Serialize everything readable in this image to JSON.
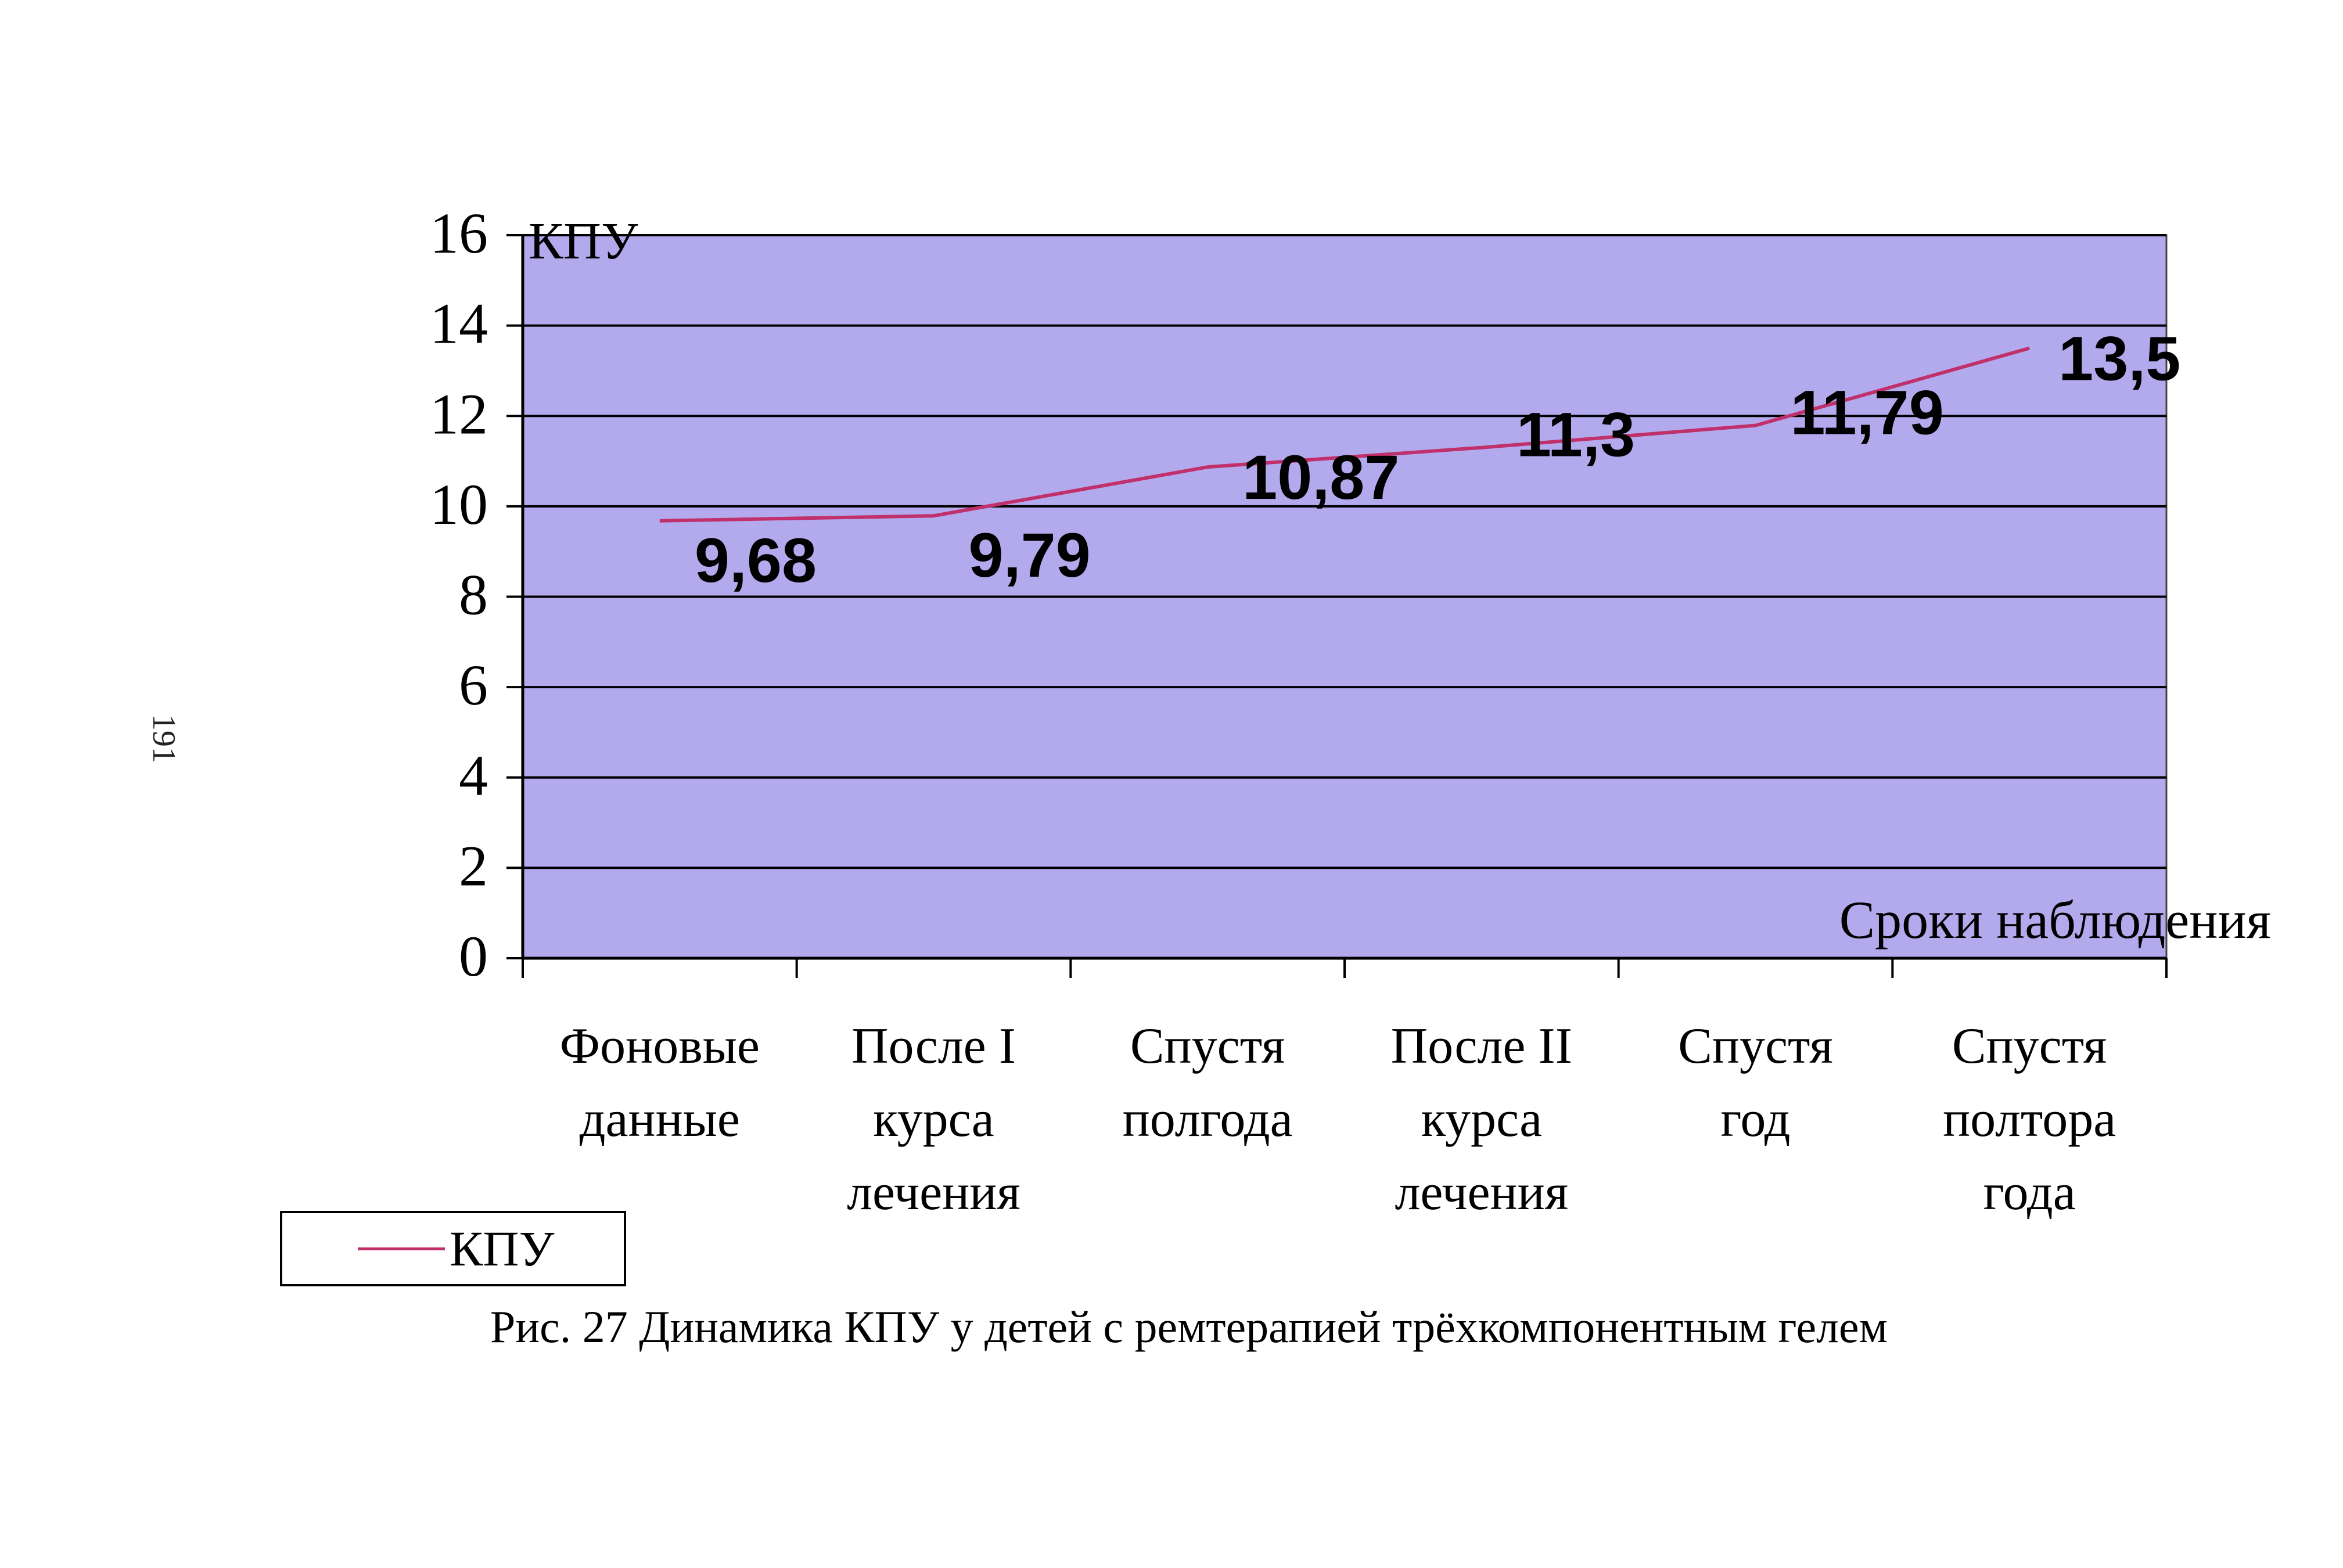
{
  "page_number": "191",
  "caption": "Рис. 27 Динамика КПУ у детей с ремтерапией трёхкомпонентным гелем",
  "legend": {
    "label": "КПУ"
  },
  "colors": {
    "plot_bg": "#b3aaee",
    "line": "#c0306a",
    "grid": "#000000"
  },
  "chart_data": {
    "type": "line",
    "ylabel": "КПУ",
    "xlabel": "Сроки наблюдения",
    "ylim": [
      0,
      16
    ],
    "yticks": [
      0,
      2,
      4,
      6,
      8,
      10,
      12,
      14,
      16
    ],
    "grid": true,
    "legend_position": "bottom-left",
    "categories": [
      [
        "Фоновые",
        "данные"
      ],
      [
        "После I",
        "курса",
        "лечения"
      ],
      [
        "Спустя",
        "полгода"
      ],
      [
        "После II",
        "курса",
        "лечения"
      ],
      [
        "Спустя",
        "год"
      ],
      [
        "Спустя",
        "полтора",
        "года"
      ]
    ],
    "series": [
      {
        "name": "КПУ",
        "values": [
          9.68,
          9.79,
          10.87,
          11.3,
          11.79,
          13.5
        ],
        "labels": [
          "9,68",
          "9,79",
          "10,87",
          "11,3",
          "11,79",
          "13,5"
        ]
      }
    ]
  }
}
